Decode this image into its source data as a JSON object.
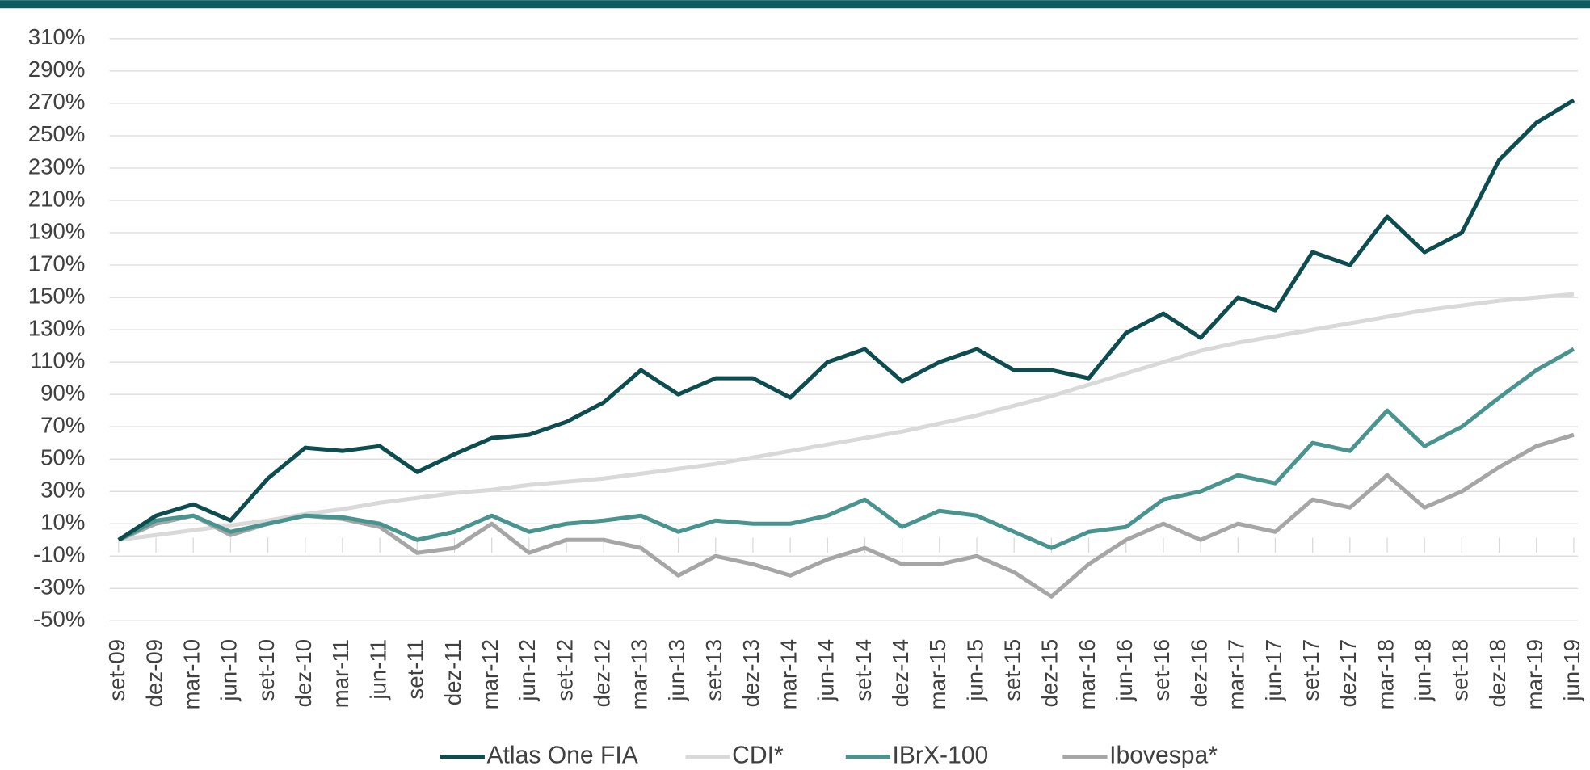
{
  "chart_data": {
    "type": "line",
    "categories": [
      "set-09",
      "dez-09",
      "mar-10",
      "jun-10",
      "set-10",
      "dez-10",
      "mar-11",
      "jun-11",
      "set-11",
      "dez-11",
      "mar-12",
      "jun-12",
      "set-12",
      "dez-12",
      "mar-13",
      "jun-13",
      "set-13",
      "dez-13",
      "mar-14",
      "jun-14",
      "set-14",
      "dez-14",
      "mar-15",
      "jun-15",
      "set-15",
      "dez-15",
      "mar-16",
      "jun-16",
      "set-16",
      "dez-16",
      "mar-17",
      "jun-17",
      "set-17",
      "dez-17",
      "mar-18",
      "jun-18",
      "set-18",
      "dez-18",
      "mar-19",
      "jun-19"
    ],
    "series": [
      {
        "name": "Atlas One FIA",
        "color": "#0d4d4f",
        "values": [
          0,
          15,
          22,
          12,
          38,
          57,
          55,
          58,
          42,
          53,
          63,
          65,
          73,
          85,
          105,
          90,
          100,
          100,
          88,
          110,
          118,
          98,
          110,
          118,
          105,
          105,
          100,
          128,
          140,
          125,
          150,
          142,
          178,
          170,
          200,
          178,
          190,
          235,
          258,
          272
        ]
      },
      {
        "name": "CDI*",
        "color": "#d9d9d9",
        "values": [
          0,
          3,
          6,
          9,
          12,
          16,
          19,
          23,
          26,
          29,
          31,
          34,
          36,
          38,
          41,
          44,
          47,
          51,
          55,
          59,
          63,
          67,
          72,
          77,
          83,
          89,
          96,
          103,
          110,
          117,
          122,
          126,
          130,
          134,
          138,
          142,
          145,
          148,
          150,
          152
        ]
      },
      {
        "name": "IBrX-100",
        "color": "#4a9490",
        "values": [
          0,
          12,
          15,
          5,
          10,
          15,
          14,
          10,
          0,
          5,
          15,
          5,
          10,
          12,
          15,
          5,
          12,
          10,
          10,
          15,
          25,
          8,
          18,
          15,
          5,
          -5,
          5,
          8,
          25,
          30,
          40,
          35,
          60,
          55,
          80,
          58,
          70,
          88,
          105,
          118
        ]
      },
      {
        "name": "Ibovespa*",
        "color": "#a6a6a6",
        "values": [
          0,
          10,
          15,
          3,
          10,
          15,
          13,
          8,
          -8,
          -5,
          10,
          -8,
          0,
          0,
          -5,
          -22,
          -10,
          -15,
          -22,
          -12,
          -5,
          -15,
          -15,
          -10,
          -20,
          -35,
          -15,
          0,
          10,
          0,
          10,
          5,
          25,
          20,
          40,
          20,
          30,
          45,
          58,
          65
        ]
      }
    ],
    "ylim": [
      -50,
      310
    ],
    "yticks": [
      {
        "value": -50,
        "label": "-50%"
      },
      {
        "value": -30,
        "label": "-30%"
      },
      {
        "value": -10,
        "label": "-10%"
      },
      {
        "value": 10,
        "label": "10%"
      },
      {
        "value": 30,
        "label": "30%"
      },
      {
        "value": 50,
        "label": "50%"
      },
      {
        "value": 70,
        "label": "70%"
      },
      {
        "value": 90,
        "label": "90%"
      },
      {
        "value": 110,
        "label": "110%"
      },
      {
        "value": 130,
        "label": "130%"
      },
      {
        "value": 150,
        "label": "150%"
      },
      {
        "value": 170,
        "label": "170%"
      },
      {
        "value": 190,
        "label": "190%"
      },
      {
        "value": 210,
        "label": "210%"
      },
      {
        "value": 230,
        "label": "230%"
      },
      {
        "value": 250,
        "label": "250%"
      },
      {
        "value": 270,
        "label": "270%"
      },
      {
        "value": 290,
        "label": "290%"
      },
      {
        "value": 310,
        "label": "310%"
      }
    ],
    "grid": true,
    "legend": "bottom"
  }
}
